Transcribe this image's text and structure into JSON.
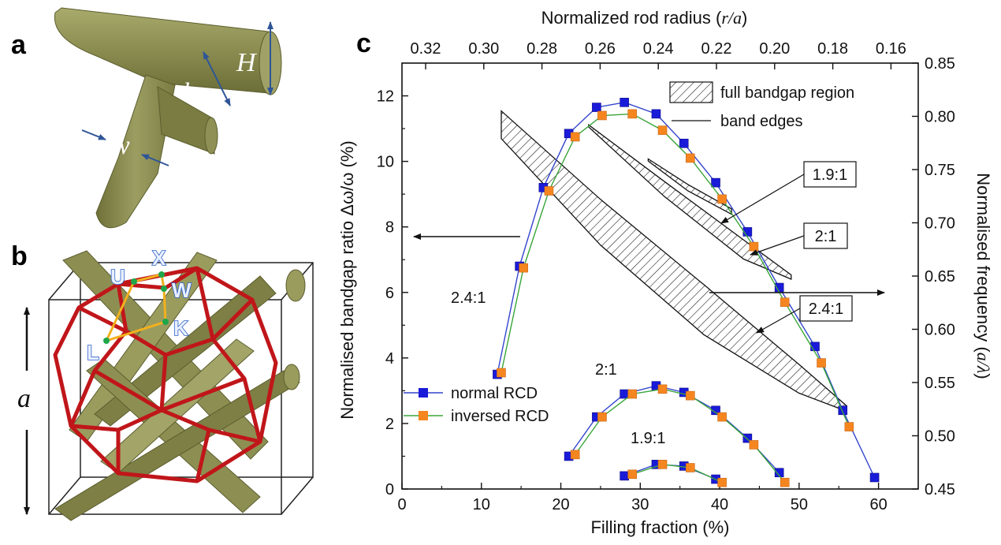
{
  "panels": {
    "a": {
      "label": "a",
      "symbols": {
        "H": "H",
        "h": "h",
        "w": "w"
      }
    },
    "b": {
      "label": "b",
      "points": [
        "X",
        "U",
        "W",
        "K",
        "L"
      ],
      "a_symbol": "a"
    },
    "c": {
      "label": "c"
    }
  },
  "colors": {
    "normal": "#1a1ad9",
    "inversed": "#f5861f",
    "normal_line": "#3344cc",
    "inversed_line": "#3aa53a",
    "rod": "#8d8f52",
    "frame": "#c0161a",
    "bz_path": "#f2b01e"
  },
  "chart_data": {
    "type": "scatter",
    "xlabel": "Filling fraction (%)",
    "ylabel": "Normalised bandgap ratio Δω/ω (%)",
    "top_xlabel": "Normalized rod radius (r/a)",
    "top_xlabel_parts": [
      "Normalized rod radius (",
      "r/a",
      ")"
    ],
    "right_ylabel": "Normalised frequency (a/λ)",
    "right_ylabel_parts": [
      "Normalised frequency (",
      "a/λ",
      ")"
    ],
    "xlim": [
      0,
      65
    ],
    "ylim": [
      0,
      13
    ],
    "right_ylim": [
      0.45,
      0.85
    ],
    "x_ticks": [
      "0",
      "10",
      "20",
      "30",
      "40",
      "50",
      "60"
    ],
    "y_ticks": [
      "0",
      "2",
      "4",
      "6",
      "8",
      "10",
      "12"
    ],
    "right_ticks": [
      "0.45",
      "0.50",
      "0.55",
      "0.60",
      "0.65",
      "0.70",
      "0.75",
      "0.80",
      "0.85"
    ],
    "top_ticks": [
      "0.32",
      "0.30",
      "0.28",
      "0.26",
      "0.24",
      "0.22",
      "0.20",
      "0.18",
      "0.16"
    ],
    "legend": {
      "items": [
        "full bandgap region",
        "band edges"
      ],
      "series": [
        "normal RCD",
        "inversed RCD"
      ],
      "placement": "top-right / bottom-left"
    },
    "series": [
      {
        "name": "normal RCD",
        "group": "2.4:1",
        "x": [
          12.0,
          14.8,
          17.8,
          21.0,
          24.5,
          28.0,
          32.0,
          35.5,
          39.5,
          43.5,
          47.5,
          52.0,
          55.5,
          59.5
        ],
        "y": [
          3.5,
          6.8,
          9.2,
          10.85,
          11.65,
          11.8,
          11.45,
          10.55,
          9.35,
          7.85,
          6.15,
          4.35,
          2.4,
          0.35
        ]
      },
      {
        "name": "inversed RCD",
        "group": "2.4:1",
        "x": [
          12.5,
          15.3,
          18.5,
          21.8,
          25.2,
          29.0,
          32.8,
          36.3,
          40.3,
          44.3,
          48.2,
          52.8,
          56.3
        ],
        "y": [
          3.55,
          6.75,
          9.1,
          10.75,
          11.4,
          11.45,
          10.95,
          10.1,
          8.85,
          7.4,
          5.7,
          3.85,
          1.9
        ]
      },
      {
        "name": "normal RCD",
        "group": "2:1",
        "x": [
          21.0,
          24.5,
          28.0,
          32.0,
          35.5,
          39.5,
          43.5,
          47.5
        ],
        "y": [
          1.0,
          2.2,
          2.9,
          3.15,
          2.95,
          2.4,
          1.55,
          0.5
        ]
      },
      {
        "name": "inversed RCD",
        "group": "2:1",
        "x": [
          21.8,
          25.2,
          29.0,
          32.8,
          36.3,
          40.3,
          44.3,
          48.2
        ],
        "y": [
          1.05,
          2.2,
          2.9,
          3.05,
          2.85,
          2.2,
          1.35,
          0.2
        ]
      },
      {
        "name": "normal RCD",
        "group": "1.9:1",
        "x": [
          28.0,
          32.0,
          35.5,
          39.5
        ],
        "y": [
          0.4,
          0.75,
          0.7,
          0.3
        ]
      },
      {
        "name": "inversed RCD",
        "group": "1.9:1",
        "x": [
          29.0,
          32.8,
          36.3,
          40.3
        ],
        "y": [
          0.45,
          0.75,
          0.65,
          0.2
        ]
      }
    ],
    "bandgap_regions": [
      {
        "label": "2.4:1",
        "upper": {
          "x": [
            12.5,
            25,
            38,
            50,
            56
          ],
          "freq": [
            0.805,
            0.722,
            0.642,
            0.567,
            0.528
          ]
        },
        "lower": {
          "x": [
            12.5,
            25,
            38,
            50,
            56
          ],
          "freq": [
            0.779,
            0.679,
            0.595,
            0.54,
            0.523
          ]
        }
      },
      {
        "label": "2:1",
        "upper": {
          "x": [
            23.5,
            33,
            43,
            49
          ],
          "freq": [
            0.792,
            0.739,
            0.684,
            0.651
          ]
        },
        "lower": {
          "x": [
            23.5,
            33,
            43,
            49
          ],
          "freq": [
            0.79,
            0.725,
            0.666,
            0.647
          ]
        }
      },
      {
        "label": "1.9:1",
        "upper": {
          "x": [
            31,
            36,
            41.5
          ],
          "freq": [
            0.76,
            0.736,
            0.713
          ]
        },
        "lower": {
          "x": [
            31,
            36,
            41.5
          ],
          "freq": [
            0.758,
            0.73,
            0.708
          ]
        }
      }
    ],
    "annotations": {
      "group_labels": {
        "g24_left": "2.4:1",
        "g2_lower": "2:1",
        "g19_lower": "1.9:1"
      },
      "boxed": [
        "1.9:1",
        "2:1",
        "2.4:1"
      ]
    }
  }
}
